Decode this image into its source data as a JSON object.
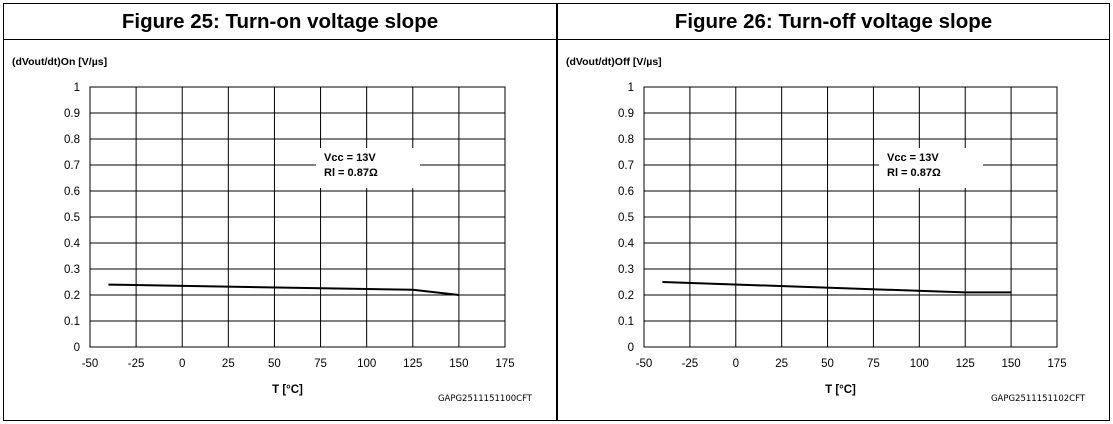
{
  "chart_data": [
    {
      "type": "line",
      "title": "Figure 25: Turn-on voltage slope",
      "ylabel": "(dVout/dt)On [V/µs]",
      "xlabel": "T [°C]",
      "x_ticks": [
        -50,
        -25,
        0,
        25,
        50,
        75,
        100,
        125,
        150,
        175
      ],
      "y_ticks": [
        0,
        0.1,
        0.2,
        0.3,
        0.4,
        0.5,
        0.6,
        0.7,
        0.8,
        0.9,
        1
      ],
      "xlim": [
        -50,
        175
      ],
      "ylim": [
        0,
        1
      ],
      "grid": true,
      "series": [
        {
          "x": [
            -40,
            125,
            150
          ],
          "y": [
            0.24,
            0.22,
            0.2
          ]
        }
      ],
      "annotation": [
        "Vcc = 13V",
        "Rl = 0.87Ω"
      ],
      "code": "GAPG2511151100CFT"
    },
    {
      "type": "line",
      "title": "Figure 26: Turn-off voltage slope",
      "ylabel": "(dVout/dt)Off [V/µs]",
      "xlabel": "T [°C]",
      "x_ticks": [
        -50,
        -25,
        0,
        25,
        50,
        75,
        100,
        125,
        150,
        175
      ],
      "y_ticks": [
        0,
        0.1,
        0.2,
        0.3,
        0.4,
        0.5,
        0.6,
        0.7,
        0.8,
        0.9,
        1
      ],
      "xlim": [
        -50,
        175
      ],
      "ylim": [
        0,
        1
      ],
      "grid": true,
      "series": [
        {
          "x": [
            -40,
            125,
            150
          ],
          "y": [
            0.25,
            0.21,
            0.21
          ]
        }
      ],
      "annotation": [
        "Vcc = 13V",
        "Rl = 0.87Ω"
      ],
      "code": "GAPG2511151102CFT"
    }
  ]
}
